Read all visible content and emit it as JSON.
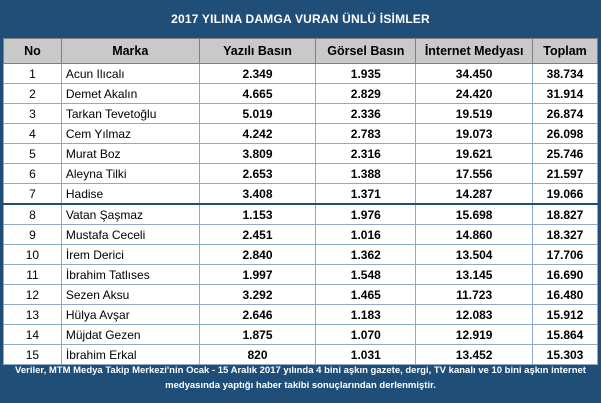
{
  "title": "2017 YILINA DAMGA VURAN ÜNLÜ İSİMLER",
  "columns": [
    "No",
    "Marka",
    "Yazılı Basın",
    "Görsel Basın",
    "İnternet Medyası",
    "Toplam"
  ],
  "rows": [
    {
      "no": "1",
      "name": "Acun Ilıcalı",
      "yazili": "2.349",
      "gorsel": "1.935",
      "internet": "34.450",
      "toplam": "38.734"
    },
    {
      "no": "2",
      "name": "Demet Akalın",
      "yazili": "4.665",
      "gorsel": "2.829",
      "internet": "24.420",
      "toplam": "31.914"
    },
    {
      "no": "3",
      "name": "Tarkan Tevetoğlu",
      "yazili": "5.019",
      "gorsel": "2.336",
      "internet": "19.519",
      "toplam": "26.874"
    },
    {
      "no": "4",
      "name": "Cem Yılmaz",
      "yazili": "4.242",
      "gorsel": "2.783",
      "internet": "19.073",
      "toplam": "26.098"
    },
    {
      "no": "5",
      "name": "Murat Boz",
      "yazili": "3.809",
      "gorsel": "2.316",
      "internet": "19.621",
      "toplam": "25.746"
    },
    {
      "no": "6",
      "name": "Aleyna Tilki",
      "yazili": "2.653",
      "gorsel": "1.388",
      "internet": "17.556",
      "toplam": "21.597"
    },
    {
      "no": "7",
      "name": "Hadise",
      "yazili": "3.408",
      "gorsel": "1.371",
      "internet": "14.287",
      "toplam": "19.066"
    },
    {
      "no": "8",
      "name": "Vatan Şaşmaz",
      "yazili": "1.153",
      "gorsel": "1.976",
      "internet": "15.698",
      "toplam": "18.827"
    },
    {
      "no": "9",
      "name": "Mustafa Ceceli",
      "yazili": "2.451",
      "gorsel": "1.016",
      "internet": "14.860",
      "toplam": "18.327"
    },
    {
      "no": "10",
      "name": "İrem Derici",
      "yazili": "2.840",
      "gorsel": "1.362",
      "internet": "13.504",
      "toplam": "17.706"
    },
    {
      "no": "11",
      "name": "İbrahim Tatlıses",
      "yazili": "1.997",
      "gorsel": "1.548",
      "internet": "13.145",
      "toplam": "16.690"
    },
    {
      "no": "12",
      "name": "Sezen Aksu",
      "yazili": "3.292",
      "gorsel": "1.465",
      "internet": "11.723",
      "toplam": "16.480"
    },
    {
      "no": "13",
      "name": "Hülya Avşar",
      "yazili": "2.646",
      "gorsel": "1.183",
      "internet": "12.083",
      "toplam": "15.912"
    },
    {
      "no": "14",
      "name": "Müjdat Gezen",
      "yazili": "1.875",
      "gorsel": "1.070",
      "internet": "12.919",
      "toplam": "15.864"
    },
    {
      "no": "15",
      "name": "İbrahim Erkal",
      "yazili": "820",
      "gorsel": "1.031",
      "internet": "13.452",
      "toplam": "15.303"
    }
  ],
  "footer": {
    "line1": "Veriler, MTM Medya Takip Merkezi'nin Ocak - 15 Aralık 2017 yılında 4 bini aşkın gazete, dergi, TV kanalı ve 10 bini aşkın internet",
    "line2": "medyasında yaptığı haber takibi sonuçlarından derlenmiştir."
  },
  "colors": {
    "frame": "#1f4e79",
    "header_bg": "#c9c9c9"
  }
}
